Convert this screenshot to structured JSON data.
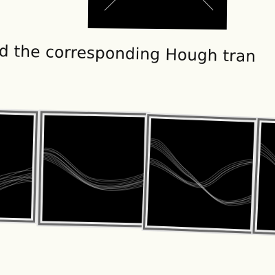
{
  "caption": "d the corresponding Hough tran"
}
